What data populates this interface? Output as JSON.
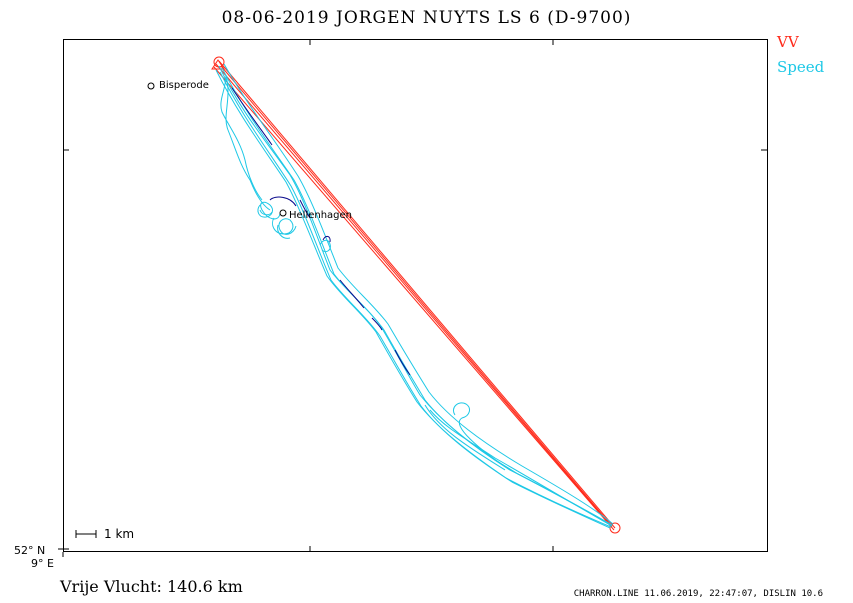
{
  "header": {
    "title": "08-06-2019    JORGEN NUYTS    LS 6 (D-9700)"
  },
  "legend": {
    "items": [
      {
        "label": "VV",
        "color": "#ff2a1a"
      },
      {
        "label": "Speed",
        "color": "#1ec8e6"
      }
    ]
  },
  "axes": {
    "lat_label": "52° N",
    "lon_label": "9° E"
  },
  "scale_bar": {
    "label": "1 km"
  },
  "places": [
    {
      "name": "Bisperode"
    },
    {
      "name": "Hellenhagen"
    }
  ],
  "footer": {
    "distance": "Vrije Vlucht:  140.6 km",
    "credit": "CHARRON.LINE 11.06.2019, 22:47:07, DISLIN 10.6"
  },
  "colors": {
    "task_line": "#ff2a1a",
    "track": "#1ec8e6",
    "track_slow": "#0a0a8c"
  }
}
